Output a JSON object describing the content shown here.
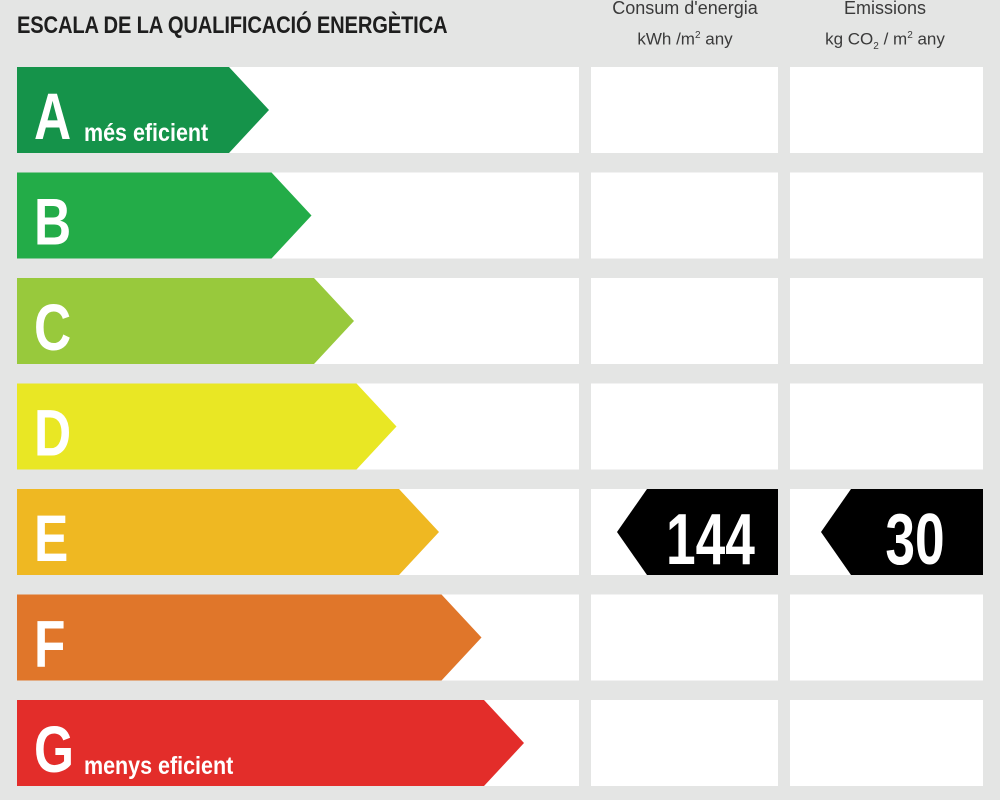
{
  "title": "ESCALA DE LA QUALIFICACIÓ ENERGÈTICA",
  "columns": {
    "consum": {
      "line1": "Consum d'energia",
      "unit_pre": "kWh /m",
      "unit_sup": "2",
      "unit_post": " any"
    },
    "emissions": {
      "line1": "Emissions",
      "unit_pre": "kg CO",
      "unit_sub": "2",
      "unit_mid": " / m",
      "unit_sup": "2",
      "unit_post": " any"
    }
  },
  "chart_data": {
    "type": "table",
    "classes": [
      {
        "letter": "A",
        "sublabel": "més eficient",
        "color": "#15934a"
      },
      {
        "letter": "B",
        "sublabel": "",
        "color": "#23ac48"
      },
      {
        "letter": "C",
        "sublabel": "",
        "color": "#98c93c"
      },
      {
        "letter": "D",
        "sublabel": "",
        "color": "#e9e724"
      },
      {
        "letter": "E",
        "sublabel": "",
        "color": "#efb822"
      },
      {
        "letter": "F",
        "sublabel": "",
        "color": "#e0762a"
      },
      {
        "letter": "G",
        "sublabel": "menys eficient",
        "color": "#e32d2a"
      }
    ],
    "rating": {
      "class": "E",
      "consum": "144",
      "emissions": "30",
      "marker_color": "#000000"
    }
  }
}
